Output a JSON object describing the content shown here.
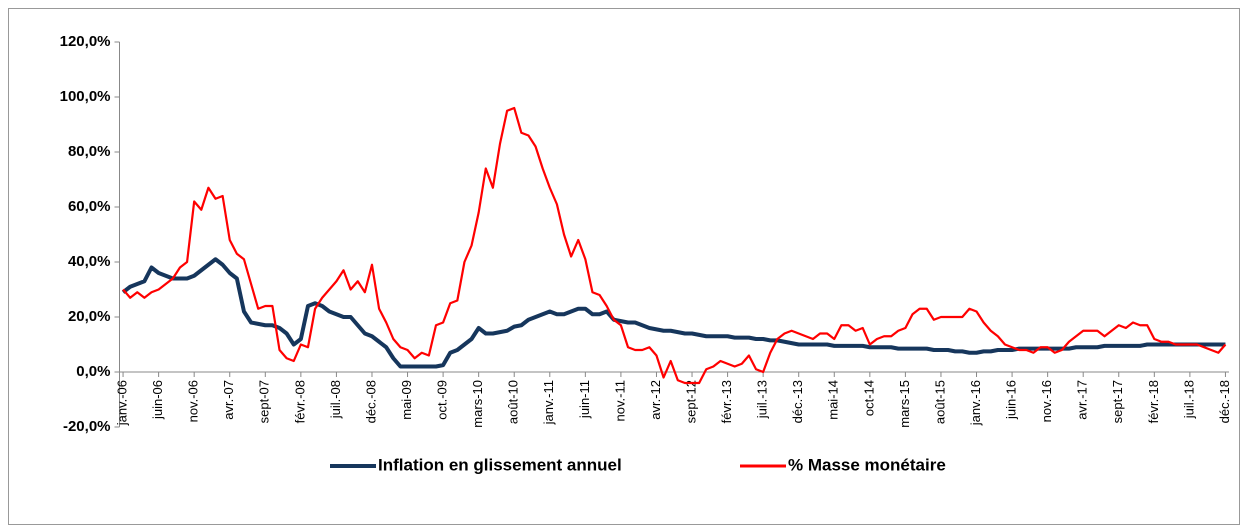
{
  "chart_data": {
    "type": "line",
    "categories": [
      "janv.-06",
      null,
      null,
      null,
      null,
      "juin-06",
      null,
      null,
      null,
      null,
      "nov.-06",
      null,
      null,
      null,
      null,
      "avr.-07",
      null,
      null,
      null,
      null,
      "sept-07",
      null,
      null,
      null,
      null,
      "févr.-08",
      null,
      null,
      null,
      null,
      "juil.-08",
      null,
      null,
      null,
      null,
      "déc.-08",
      null,
      null,
      null,
      null,
      "mai-09",
      null,
      null,
      null,
      null,
      "oct.-09",
      null,
      null,
      null,
      null,
      "mars-10",
      null,
      null,
      null,
      null,
      "août-10",
      null,
      null,
      null,
      null,
      "janv.-11",
      null,
      null,
      null,
      null,
      "juin-11",
      null,
      null,
      null,
      null,
      "nov.-11",
      null,
      null,
      null,
      null,
      "avr.-12",
      null,
      null,
      null,
      null,
      "sept-12",
      null,
      null,
      null,
      null,
      "févr.-13",
      null,
      null,
      null,
      null,
      "juil.-13",
      null,
      null,
      null,
      null,
      "déc.-13",
      null,
      null,
      null,
      null,
      "mai-14",
      null,
      null,
      null,
      null,
      "oct-14",
      null,
      null,
      null,
      null,
      "mars-15",
      null,
      null,
      null,
      null,
      "août-15",
      null,
      null,
      null,
      null,
      "janv.-16",
      null,
      null,
      null,
      null,
      "juin-16",
      null,
      null,
      null,
      null,
      "nov.-16",
      null,
      null,
      null,
      null,
      "avr.-17",
      null,
      null,
      null,
      null,
      "sept-17",
      null,
      null,
      null,
      null,
      "févr.-18",
      null,
      null,
      null,
      null,
      "juil.-18",
      null,
      null,
      null,
      null,
      "déc.-18"
    ],
    "series": [
      {
        "name": "Inflation en glissement annuel",
        "color": "#16365c",
        "values": [
          29,
          31,
          32,
          33,
          38,
          36,
          35,
          34,
          34,
          34,
          35,
          37,
          39,
          41,
          39,
          36,
          34,
          22,
          18,
          17.5,
          17,
          17,
          16,
          14,
          10,
          12,
          24,
          25,
          24,
          22,
          21,
          20,
          20,
          17,
          14,
          13,
          11,
          9,
          5,
          2,
          2,
          2,
          2,
          2,
          2,
          2.5,
          7,
          8,
          10,
          12,
          16,
          14,
          14,
          14.5,
          15,
          16.5,
          17,
          19,
          20,
          21,
          22,
          21,
          21,
          22,
          23,
          23,
          21,
          21,
          22,
          19,
          18.5,
          18,
          18,
          17,
          16,
          15.5,
          15,
          15,
          14.5,
          14,
          14,
          13.5,
          13,
          13,
          13,
          13,
          12.5,
          12.5,
          12.5,
          12,
          12,
          11.5,
          11.5,
          11,
          10.5,
          10,
          10,
          10,
          10,
          10,
          9.5,
          9.5,
          9.5,
          9.5,
          9.5,
          9,
          9,
          9,
          9,
          8.5,
          8.5,
          8.5,
          8.5,
          8.5,
          8,
          8,
          8,
          7.5,
          7.5,
          7,
          7,
          7.5,
          7.5,
          8,
          8,
          8,
          8.5,
          8.5,
          8.5,
          8.5,
          8.5,
          8.5,
          8.5,
          8.5,
          9,
          9,
          9,
          9,
          9.5,
          9.5,
          9.5,
          9.5,
          9.5,
          9.5,
          10,
          10,
          10,
          10,
          10,
          10,
          10,
          10,
          10,
          10,
          10,
          10
        ]
      },
      {
        "name": "% Masse monétaire",
        "color": "#ff0000",
        "values": [
          30,
          27,
          29,
          27,
          29,
          30,
          32,
          34,
          38,
          40,
          62,
          59,
          67,
          63,
          64,
          48,
          43,
          41,
          32,
          23,
          24,
          24,
          8,
          5,
          4,
          10,
          9,
          23,
          27,
          30,
          33,
          37,
          30,
          33,
          29,
          39,
          23,
          18,
          12,
          9,
          8,
          5,
          7,
          6,
          17,
          18,
          25,
          26,
          40,
          46,
          58,
          74,
          67,
          83,
          95,
          96,
          87,
          86,
          82,
          74,
          67,
          61,
          50,
          42,
          48,
          41,
          29,
          28,
          24,
          19,
          17,
          9,
          8,
          8,
          9,
          6,
          -2,
          4,
          -3,
          -4,
          -4,
          -4,
          1,
          2,
          4,
          3,
          2,
          3,
          6,
          1,
          0,
          7,
          12,
          14,
          15,
          14,
          13,
          12,
          14,
          14,
          12,
          17,
          17,
          15,
          16,
          10,
          12,
          13,
          13,
          15,
          16,
          21,
          23,
          23,
          19,
          20,
          20,
          20,
          20,
          23,
          22,
          18,
          15,
          13,
          10,
          9,
          8,
          8,
          7,
          9,
          9,
          7,
          8,
          11,
          13,
          15,
          15,
          15,
          13,
          15,
          17,
          16,
          18,
          17,
          17,
          12,
          11,
          11,
          10,
          10,
          10,
          10,
          9,
          8,
          7,
          10
        ]
      }
    ],
    "ylim": [
      -20,
      120
    ],
    "yticks": [
      {
        "value": -20,
        "label": "-20,0%"
      },
      {
        "value": 0,
        "label": "0,0%"
      },
      {
        "value": 20,
        "label": "20,0%"
      },
      {
        "value": 40,
        "label": "40,0%"
      },
      {
        "value": 60,
        "label": "60,0%"
      },
      {
        "value": 80,
        "label": "80,0%"
      },
      {
        "value": 100,
        "label": "100,0%"
      },
      {
        "value": 120,
        "label": "120,0%"
      }
    ],
    "grid": false,
    "legend": "bottom"
  }
}
